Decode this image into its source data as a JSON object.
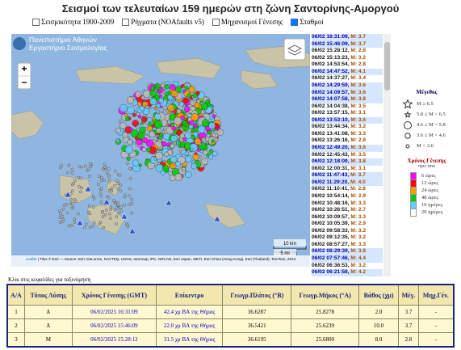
{
  "header": {
    "title": "Σεισμοί των τελευταίων 159 ημερών στη ζώνη Σαντορίνης-Αμοργού",
    "layers": [
      {
        "label": "Σεισμικότητα 1900-2009",
        "checked": false
      },
      {
        "label": "Ρήγματα (NOAfaults v5)",
        "checked": false
      },
      {
        "label": "Μηχανισμοί Γένεσης",
        "checked": false
      },
      {
        "label": "Σταθμοί",
        "checked": true
      }
    ]
  },
  "map": {
    "logo": [
      "Πανεπιστήμιο Αθηνών",
      "Εργαστήριο Σεισμολογίας"
    ],
    "zoom_in": "+",
    "zoom_out": "−",
    "scale": [
      "10 km",
      "5 mi"
    ],
    "attribution_link": "Leaflet",
    "attribution": "| Tiles © Esri — Source: Esri, DeLorme, NAVTEQ, USGS, Intermap, iPC, NRCAN, Esri Japan, METI, Esri China (Hong Kong), Esri (Thailand), TomTom, 2012"
  },
  "events": [
    {
      "time": "06/02 16:31:09,",
      "mag": "M: 3.7"
    },
    {
      "time": "06/02 15:46:09,",
      "mag": "M: 3.7"
    },
    {
      "time": "06/02 15:28:12,",
      "mag": "M: 2.8"
    },
    {
      "time": "06/02 15:13:23,",
      "mag": "M: 3.2"
    },
    {
      "time": "06/02 14:53:54,",
      "mag": "M: 2.8"
    },
    {
      "time": "06/02 14:47:52,",
      "mag": "M: 4.1"
    },
    {
      "time": "06/02 14:37:27,",
      "mag": "M: 3.4"
    },
    {
      "time": "06/02 14:29:59,",
      "mag": "M: 3.6"
    },
    {
      "time": "06/02 14:09:57,",
      "mag": "M: 3.6"
    },
    {
      "time": "06/02 14:07:58,",
      "mag": "M: 3.8"
    },
    {
      "time": "06/02 14:04:38,",
      "mag": "M: 3.5"
    },
    {
      "time": "06/02 13:57:15,",
      "mag": "M: 3.1"
    },
    {
      "time": "06/02 13:53:10,",
      "mag": "M: 3.6"
    },
    {
      "time": "06/02 13:44:34,",
      "mag": "M: 3.2"
    },
    {
      "time": "06/02 13:41:08,",
      "mag": "M: 3.3"
    },
    {
      "time": "06/02 13:26:16,",
      "mag": "M: 2.8"
    },
    {
      "time": "06/02 12:49:20,",
      "mag": "M: 3.6"
    },
    {
      "time": "06/02 12:45:43,",
      "mag": "M: 3.5"
    },
    {
      "time": "06/02 12:18:09,",
      "mag": "M: 3.8"
    },
    {
      "time": "06/02 12:00:31,",
      "mag": "M: 3.1"
    },
    {
      "time": "06/02 11:47:43,",
      "mag": "M: 3.7"
    },
    {
      "time": "06/02 11:29:20,",
      "mag": "M: 4.0"
    },
    {
      "time": "06/02 11:10:41,",
      "mag": "M: 2.8"
    },
    {
      "time": "06/02 10:54:14,",
      "mag": "M: 2.9"
    },
    {
      "time": "06/02 10:48:16,",
      "mag": "M: 3.3"
    },
    {
      "time": "06/02 10:26:51,",
      "mag": "M: 2.7"
    },
    {
      "time": "06/02 10:09:57,",
      "mag": "M: 3.3"
    },
    {
      "time": "06/02 10:05:39,",
      "mag": "M: 2.9"
    },
    {
      "time": "06/02 09:58:33,",
      "mag": "M: 3.2"
    },
    {
      "time": "06/02 09:12:35,",
      "mag": "M: 3.2"
    },
    {
      "time": "06/02 08:57:27,",
      "mag": "M: 3.3"
    },
    {
      "time": "06/02 08:29:39,",
      "mag": "M: 3.8"
    },
    {
      "time": "06/02 07:57:46,",
      "mag": "M: 4.4"
    },
    {
      "time": "06/02 06:36:53,",
      "mag": "M: 3.2"
    },
    {
      "time": "06/02 06:21:58,",
      "mag": "M: 4.2"
    }
  ],
  "legend": {
    "magnitude_title": "Μέγεθος",
    "magnitude": [
      "M ≥ 6.5",
      "5.8 ≤ M < 6.5",
      "4.6 ≤ M < 5.8",
      "3.6 ≤ M < 4.6",
      "M < 3.6"
    ],
    "time_title": "Χρόνος Γένεσης",
    "time_subtitle": "πριν από",
    "time": [
      {
        "label": "6 ώρες",
        "color": "#ff00ff"
      },
      {
        "label": "12 ώρες",
        "color": "#ff0000"
      },
      {
        "label": "24 ώρες",
        "color": "#ff9900"
      },
      {
        "label": "48 ώρες",
        "color": "#00cc00"
      },
      {
        "label": "10 ημέρες",
        "color": "#66ccff"
      },
      {
        "label": "20 ημέρες",
        "color": "#ffffff"
      }
    ]
  },
  "table": {
    "note": "Κλικ στις κεφαλίδες για ταξινόμηση",
    "columns": [
      "Α/Α",
      "Τύπος Λύσης",
      "Χρόνος Γένεσης (GMT)",
      "Επίκεντρο",
      "Γεωγρ.Πλάτος (°Β)",
      "Γεωγρ.Μήκος (°Α)",
      "Βάθος (χμ)",
      "Μέγ.",
      "Μηχ.Γέν."
    ],
    "rows": [
      [
        "1",
        "A",
        "06/02/2025 16:31:09",
        "42.4 χμ ΒΑ της Θήρας",
        "36.6287",
        "25.8278",
        "2.0",
        "3.7",
        "-"
      ],
      [
        "2",
        "A",
        "06/02/2025 15:46:09",
        "22.0 χμ ΒΑ της Θήρας",
        "36.5421",
        "25.6239",
        "10.0",
        "3.7",
        "-"
      ],
      [
        "3",
        "M",
        "06/02/2025 15:28:12",
        "31.5 χμ ΒΑ της Θήρας",
        "36.6195",
        "25.6800",
        "8.0",
        "2.8",
        "-"
      ]
    ]
  }
}
